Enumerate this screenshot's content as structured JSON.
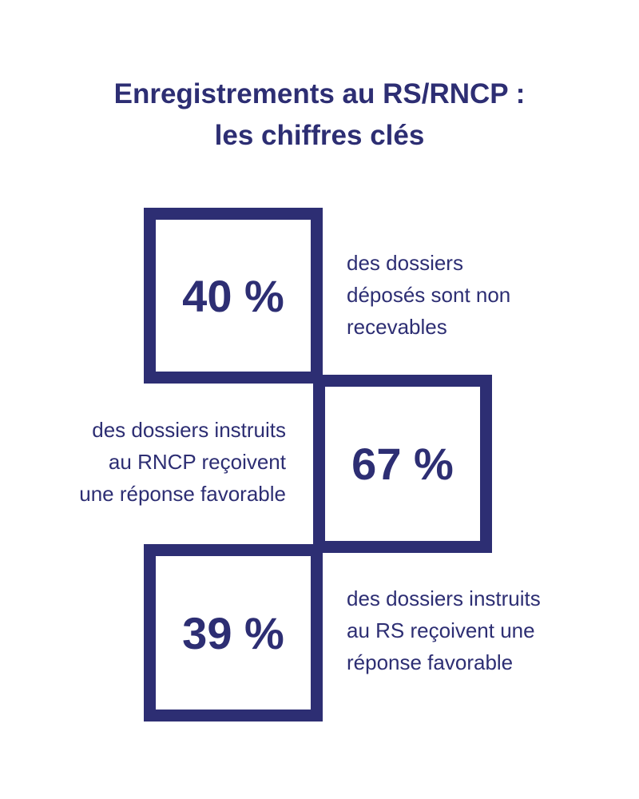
{
  "title": {
    "line1": "Enregistrements au RS/RNCP :",
    "line2": "les chiffres clés"
  },
  "stats": [
    {
      "value": "40 %",
      "description": [
        "des dossiers",
        "déposés sont non",
        "recevables"
      ]
    },
    {
      "value": "67 %",
      "description": [
        "des dossiers instruits",
        "au RNCP reçoivent",
        "une réponse favorable"
      ]
    },
    {
      "value": "39 %",
      "description": [
        "des dossiers instruits",
        "au RS reçoivent une",
        "réponse favorable"
      ]
    }
  ],
  "colors": {
    "primary": "#2d2e73",
    "background": "#ffffff"
  }
}
